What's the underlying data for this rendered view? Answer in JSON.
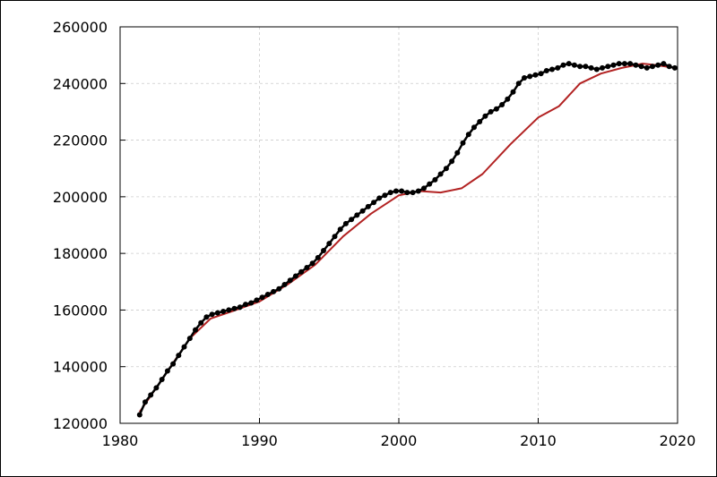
{
  "chart_data": {
    "type": "scatter",
    "title": "",
    "xlabel": "",
    "ylabel": "",
    "xlim": [
      1980,
      2020
    ],
    "ylim": [
      120000,
      260000
    ],
    "grid": true,
    "legend": "none",
    "x_ticks": [
      "1980",
      "1990",
      "2000",
      "2010",
      "2020"
    ],
    "y_ticks": [
      "120000",
      "140000",
      "160000",
      "180000",
      "200000",
      "220000",
      "240000",
      "260000"
    ],
    "colors": {
      "points": "#000000",
      "trend": "#b22222",
      "grid": "#cccccc",
      "frame": "#000000"
    },
    "series": [
      {
        "kind": "points",
        "x": [
          1981.4,
          1981.8,
          1982.2,
          1982.6,
          1983.0,
          1983.4,
          1983.8,
          1984.2,
          1984.6,
          1985.0,
          1985.4,
          1985.8,
          1986.2,
          1986.6,
          1987.0,
          1987.4,
          1987.8,
          1988.2,
          1988.6,
          1989.0,
          1989.4,
          1989.8,
          1990.2,
          1990.6,
          1991.0,
          1991.4,
          1991.8,
          1992.2,
          1992.6,
          1993.0,
          1993.4,
          1993.8,
          1994.2,
          1994.6,
          1995.0,
          1995.4,
          1995.8,
          1996.2,
          1996.6,
          1997.0,
          1997.4,
          1997.8,
          1998.2,
          1998.6,
          1999.0,
          1999.4,
          1999.8,
          2000.2,
          2000.6,
          2001.0,
          2001.4,
          2001.8,
          2002.2,
          2002.6,
          2003.0,
          2003.4,
          2003.8,
          2004.2,
          2004.6,
          2005.0,
          2005.4,
          2005.8,
          2006.2,
          2006.6,
          2007.0,
          2007.4,
          2007.8,
          2008.2,
          2008.6,
          2009.0,
          2009.4,
          2009.8,
          2010.2,
          2010.6,
          2011.0,
          2011.4,
          2011.8,
          2012.2,
          2012.6,
          2013.0,
          2013.4,
          2013.8,
          2014.2,
          2014.6,
          2015.0,
          2015.4,
          2015.8,
          2016.2,
          2016.6,
          2017.0,
          2017.4,
          2017.8,
          2018.2,
          2018.6,
          2019.0,
          2019.4,
          2019.8
        ],
        "y": [
          123000,
          127500,
          130000,
          132500,
          135500,
          138500,
          141000,
          144000,
          147000,
          150000,
          153000,
          155500,
          157500,
          158500,
          159000,
          159500,
          160000,
          160500,
          161000,
          162000,
          162500,
          163500,
          164500,
          165500,
          166500,
          167500,
          169000,
          170500,
          172000,
          173500,
          175000,
          176500,
          178500,
          181000,
          183500,
          186000,
          188500,
          190500,
          192000,
          193500,
          195000,
          196500,
          198000,
          199500,
          200500,
          201500,
          202000,
          202000,
          201500,
          201500,
          202000,
          203000,
          204500,
          206000,
          208000,
          210000,
          212500,
          215500,
          219000,
          222000,
          224500,
          226500,
          228500,
          230000,
          231000,
          232500,
          234500,
          237000,
          240000,
          242000,
          242500,
          243000,
          243500,
          244500,
          245000,
          245500,
          246500,
          247000,
          246500,
          246000,
          246000,
          245500,
          245000,
          245500,
          246000,
          246500,
          247000,
          247000,
          247000,
          246500,
          246000,
          245500,
          246000,
          246500,
          247000,
          246000,
          245500
        ]
      },
      {
        "kind": "trend",
        "x": [
          1981.4,
          1983.0,
          1985.0,
          1986.5,
          1988.0,
          1990.0,
          1992.0,
          1994.0,
          1996.0,
          1998.0,
          2000.0,
          2001.5,
          2003.0,
          2004.5,
          2006.0,
          2008.0,
          2010.0,
          2011.5,
          2013.0,
          2014.5,
          2016.0,
          2017.5,
          2018.5,
          2019.8
        ],
        "y": [
          124000,
          135500,
          150000,
          157000,
          159500,
          163000,
          169000,
          176000,
          186000,
          194000,
          200500,
          202000,
          201500,
          203000,
          208000,
          218500,
          228000,
          232000,
          240000,
          243500,
          245500,
          247000,
          246500,
          245500
        ]
      }
    ]
  }
}
